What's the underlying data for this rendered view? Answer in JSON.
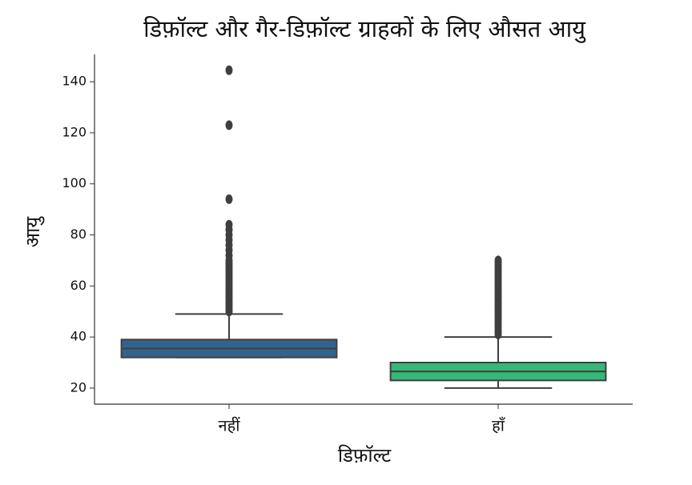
{
  "chart_data": {
    "type": "box",
    "title": "डिफ़ॉल्ट और गैर-डिफ़ॉल्ट ग्राहकों के लिए औसत आयु",
    "x_label": "डिफ़ॉल्ट",
    "y_label": "आयु",
    "categories": [
      "नहीं",
      "हाँ"
    ],
    "boxes": [
      {
        "min": 32,
        "q1": 32,
        "median": 35.5,
        "q3": 39,
        "max": 49,
        "color": "#33638d",
        "outliers": [
          50,
          51,
          52,
          53,
          54,
          55,
          56,
          57,
          58,
          59,
          60,
          61,
          62,
          63,
          64,
          65,
          66,
          67,
          68,
          69,
          70,
          72,
          74,
          76,
          78,
          80,
          82,
          84,
          94,
          123,
          144.5
        ]
      },
      {
        "min": 20,
        "q1": 23,
        "median": 26.5,
        "q3": 30,
        "max": 40,
        "color": "#35b779",
        "outliers": [
          41,
          42,
          43,
          44,
          45,
          46,
          47,
          48,
          49,
          50,
          51,
          52,
          53,
          54,
          55,
          56,
          57,
          58,
          59,
          60,
          61,
          62,
          63,
          64,
          65,
          66,
          67,
          68,
          69,
          70
        ]
      }
    ],
    "edge_color": "#3f3f3f",
    "ylim": [
      13.7,
      150.7
    ],
    "yticks": [
      20,
      40,
      60,
      80,
      100,
      120,
      140
    ]
  }
}
